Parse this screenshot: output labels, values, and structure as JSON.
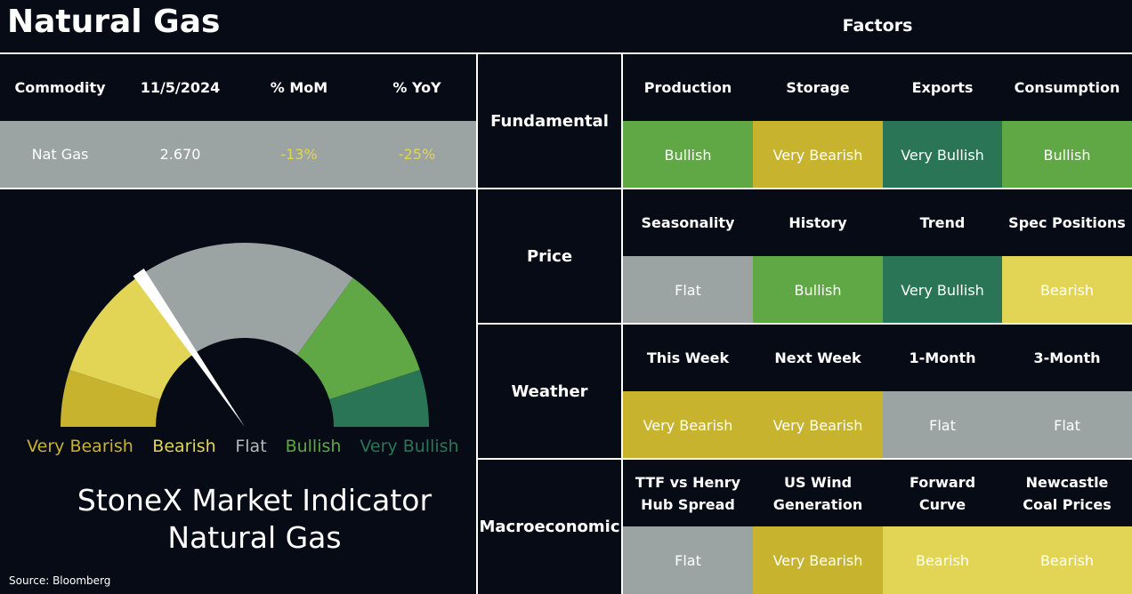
{
  "header": {
    "title": "Natural Gas",
    "factors": "Factors"
  },
  "commodity_table": {
    "headers": [
      "Commodity",
      "11/5/2024",
      "% MoM",
      "% YoY"
    ],
    "rows": [
      [
        "Nat Gas",
        "2.670",
        "-13%",
        "-25%"
      ]
    ]
  },
  "gauge": {
    "levels": [
      {
        "label": "Very Bearish",
        "color": "#c8b32e"
      },
      {
        "label": "Bearish",
        "color": "#e2d455"
      },
      {
        "label": "Flat",
        "color": "#9ca3a3"
      },
      {
        "label": "Bullish",
        "color": "#5fa845"
      },
      {
        "label": "Very Bullish",
        "color": "#2a7556"
      }
    ],
    "title": "StoneX Market Indicator",
    "subtitle": "Natural Gas"
  },
  "source": "Source: Bloomberg",
  "factor_groups": [
    {
      "name": "Fundamental",
      "items": [
        {
          "label": "Production",
          "rating": "Bullish"
        },
        {
          "label": "Storage",
          "rating": "Very Bearish"
        },
        {
          "label": "Exports",
          "rating": "Very Bullish"
        },
        {
          "label": "Consumption",
          "rating": "Bullish"
        }
      ]
    },
    {
      "name": "Price",
      "items": [
        {
          "label": "Seasonality",
          "rating": "Flat"
        },
        {
          "label": "History",
          "rating": "Bullish"
        },
        {
          "label": "Trend",
          "rating": "Very Bullish"
        },
        {
          "label": "Spec Positions",
          "rating": "Bearish"
        }
      ]
    },
    {
      "name": "Weather",
      "items": [
        {
          "label": "This Week",
          "rating": "Very Bearish"
        },
        {
          "label": "Next Week",
          "rating": "Very Bearish"
        },
        {
          "label": "1-Month",
          "rating": "Flat"
        },
        {
          "label": "3-Month",
          "rating": "Flat"
        }
      ]
    },
    {
      "name": "Macroeconomic",
      "items": [
        {
          "label": "TTF vs Henry Hub Spread",
          "rating": "Flat"
        },
        {
          "label": "US Wind Generation",
          "rating": "Very Bearish"
        },
        {
          "label": "Forward Curve",
          "rating": "Bearish"
        },
        {
          "label": "Newcastle Coal Prices",
          "rating": "Bearish"
        }
      ]
    }
  ]
}
